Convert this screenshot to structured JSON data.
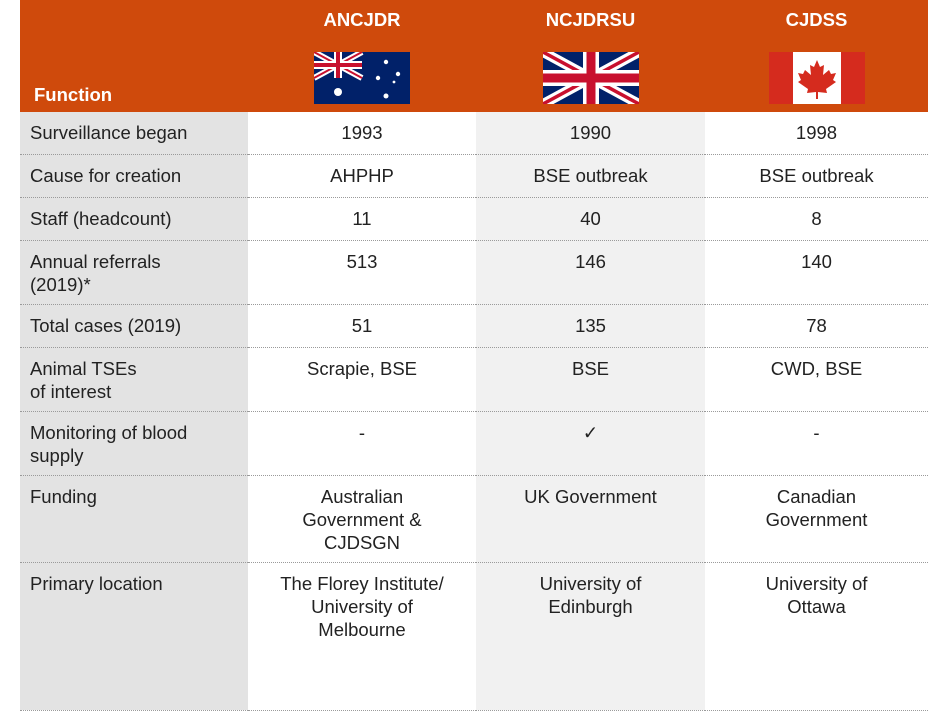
{
  "header": {
    "function": "Function",
    "columns": [
      "ANCJDR",
      "NCJDRSU",
      "CJDSS"
    ]
  },
  "table": {
    "rows": [
      [
        "Surveillance began",
        "1993",
        "1990",
        "1998"
      ],
      [
        "Cause for creation",
        "AHPHP",
        "BSE outbreak",
        "BSE outbreak"
      ],
      [
        "Staff (headcount)",
        "11",
        "40",
        "8"
      ],
      [
        "Annual referrals\n(2019)*",
        "513",
        "146",
        "140"
      ],
      [
        "Total cases (2019)",
        "51",
        "135",
        "78"
      ],
      [
        "Animal TSEs\nof interest",
        "Scrapie, BSE",
        "BSE",
        "CWD, BSE"
      ],
      [
        "Monitoring of blood\nsupply",
        "-",
        "✓",
        "-"
      ],
      [
        "Funding",
        "Australian\nGovernment &\nCJDSGN",
        "UK Government",
        "Canadian\nGovernment"
      ],
      [
        "Primary location",
        "The Florey Institute/\nUniversity of\nMelbourne",
        "University of\nEdinburgh",
        "University of\nOttawa"
      ]
    ]
  }
}
